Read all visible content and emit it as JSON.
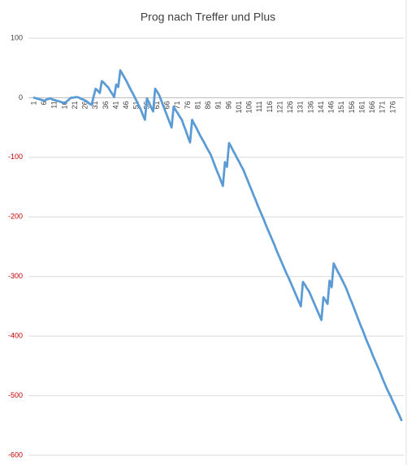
{
  "chart_data": {
    "type": "line",
    "title": "Prog nach Treffer und Plus",
    "categories": [
      1,
      null,
      null,
      null,
      null,
      6,
      null,
      null,
      null,
      null,
      11,
      null,
      null,
      null,
      null,
      16,
      null,
      null,
      null,
      null,
      21,
      null,
      null,
      null,
      null,
      26,
      null,
      null,
      null,
      null,
      31,
      null,
      null,
      null,
      null,
      36,
      null,
      null,
      null,
      null,
      41,
      null,
      null,
      null,
      null,
      46,
      null,
      null,
      null,
      null,
      51,
      null,
      null,
      null,
      null,
      56,
      null,
      null,
      null,
      null,
      61,
      null,
      null,
      null,
      null,
      66,
      null,
      null,
      null,
      null,
      71,
      null,
      null,
      null,
      null,
      76,
      null,
      null,
      null,
      null,
      81,
      null,
      null,
      null,
      null,
      86,
      null,
      null,
      null,
      null,
      91,
      null,
      null,
      null,
      null,
      96,
      null,
      null,
      null,
      null,
      101,
      null,
      null,
      null,
      null,
      106,
      null,
      null,
      null,
      null,
      111,
      null,
      null,
      null,
      null,
      116,
      null,
      null,
      null,
      null,
      121,
      null,
      null,
      null,
      null,
      126,
      null,
      null,
      null,
      null,
      131,
      null,
      null,
      null,
      null,
      136,
      null,
      null,
      null,
      null,
      141,
      null,
      null,
      null,
      null,
      146,
      null,
      null,
      null,
      null,
      151,
      null,
      null,
      null,
      null,
      156,
      null,
      null,
      null,
      null,
      161,
      null,
      null,
      null,
      null,
      166,
      null,
      null,
      null,
      null,
      171,
      null,
      null,
      null,
      null,
      176,
      null,
      null,
      null,
      null
    ],
    "values": [
      0,
      -1,
      -2,
      -3,
      -4,
      -5,
      -3,
      -2,
      -1,
      -3,
      -4,
      -5,
      -6,
      -7,
      -8,
      -9,
      -6,
      -3,
      0,
      0,
      1,
      1,
      0,
      -2,
      -3,
      -5,
      -7,
      -10,
      -12,
      2,
      15,
      12,
      8,
      28,
      25,
      21,
      18,
      12,
      7,
      1,
      22,
      18,
      46,
      40,
      34,
      28,
      21,
      14,
      8,
      1,
      -6,
      -13,
      -20,
      -29,
      -37,
      -1,
      -8,
      -16,
      -23,
      15,
      10,
      4,
      -5,
      -14,
      -23,
      -32,
      -41,
      -50,
      -15,
      -21,
      -26,
      -32,
      -37,
      -47,
      -56,
      -66,
      -75,
      -37,
      -44,
      -50,
      -57,
      -64,
      -70,
      -76,
      -83,
      -89,
      -95,
      -104,
      -113,
      -122,
      -130,
      -139,
      -148,
      -108,
      -116,
      -76,
      -82,
      -89,
      -95,
      -102,
      -108,
      -115,
      -121,
      -130,
      -138,
      -147,
      -155,
      -164,
      -172,
      -181,
      -189,
      -197,
      -205,
      -214,
      -222,
      -230,
      -238,
      -246,
      -255,
      -263,
      -271,
      -279,
      -287,
      -295,
      -302,
      -310,
      -318,
      -326,
      -334,
      -342,
      -350,
      -309,
      -314,
      -320,
      -325,
      -333,
      -341,
      -349,
      -357,
      -365,
      -373,
      -335,
      -340,
      -346,
      -307,
      -318,
      -278,
      -285,
      -292,
      -298,
      -305,
      -312,
      -319,
      -328,
      -337,
      -345,
      -354,
      -363,
      -372,
      -381,
      -389,
      -398,
      -407,
      -415,
      -423,
      -432,
      -440,
      -448,
      -456,
      -464,
      -473,
      -481,
      -489,
      -496,
      -503,
      -511,
      -518,
      -526,
      -533,
      -541
    ],
    "color": "#5b9bd5",
    "ylim": [
      -600,
      100
    ],
    "yticks": [
      100,
      0,
      -100,
      -200,
      -300,
      -400,
      -500,
      -600
    ],
    "grid": true,
    "negative_tick_color": "#c00000"
  }
}
